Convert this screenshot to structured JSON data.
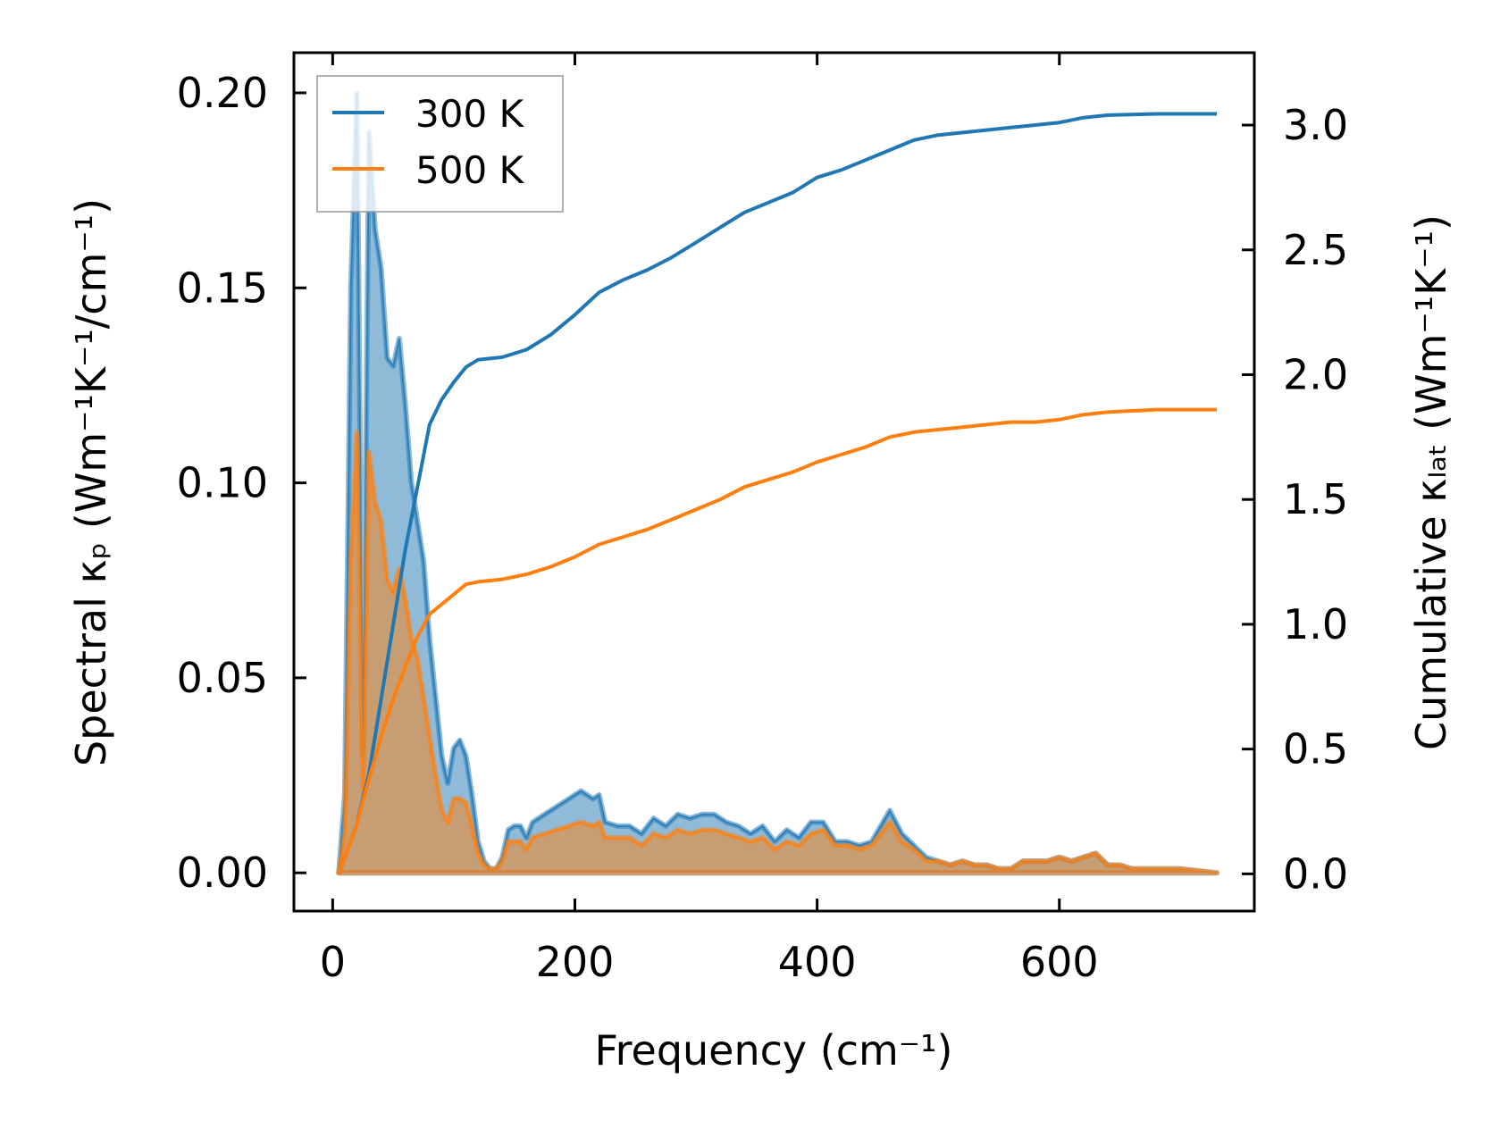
{
  "chart_data": {
    "type": "line",
    "xlabel": "Frequency (cm⁻¹)",
    "ylabel": "Spectral κₚ (Wm⁻¹K⁻¹/cm⁻¹)",
    "y2label": "Cumulative κₗₐₜ (Wm⁻¹K⁻¹)",
    "xlim": [
      -32,
      761
    ],
    "ylim": [
      -0.0098,
      0.2103
    ],
    "y2lim": [
      -0.149,
      3.29
    ],
    "xticks": [
      "0",
      "200",
      "400",
      "600"
    ],
    "xtick_values": [
      0,
      200,
      400,
      600
    ],
    "yticks": [
      "0.00",
      "0.05",
      "0.10",
      "0.15",
      "0.20"
    ],
    "ytick_values": [
      0,
      0.05,
      0.1,
      0.15,
      0.2
    ],
    "y2ticks": [
      "0.0",
      "0.5",
      "1.0",
      "1.5",
      "2.0",
      "2.5",
      "3.0"
    ],
    "y2tick_values": [
      0,
      0.5,
      1.0,
      1.5,
      2.0,
      2.5,
      3.0
    ],
    "legend": {
      "placement": "top-left",
      "entries": [
        "300 K",
        "500 K"
      ]
    },
    "colors": {
      "300 K": "#1f77b4",
      "500 K": "#ff7f0e"
    },
    "spectral": {
      "x": [
        5,
        10,
        15,
        20,
        25,
        30,
        35,
        40,
        45,
        50,
        55,
        60,
        65,
        70,
        75,
        80,
        85,
        90,
        95,
        100,
        105,
        110,
        115,
        120,
        125,
        130,
        135,
        140,
        145,
        150,
        155,
        160,
        165,
        175,
        185,
        195,
        205,
        215,
        220,
        225,
        235,
        245,
        255,
        265,
        275,
        285,
        295,
        305,
        315,
        325,
        335,
        345,
        355,
        365,
        375,
        385,
        395,
        405,
        415,
        425,
        435,
        445,
        460,
        470,
        480,
        490,
        500,
        510,
        520,
        530,
        540,
        550,
        560,
        570,
        580,
        590,
        600,
        610,
        620,
        630,
        640,
        650,
        660,
        680,
        700,
        730
      ],
      "series": [
        {
          "name": "300 K",
          "values": [
            0,
            0.02,
            0.15,
            0.2,
            0.03,
            0.19,
            0.165,
            0.155,
            0.132,
            0.13,
            0.137,
            0.12,
            0.1,
            0.09,
            0.08,
            0.06,
            0.045,
            0.03,
            0.023,
            0.032,
            0.034,
            0.03,
            0.02,
            0.008,
            0.003,
            0.001,
            0.001,
            0.004,
            0.011,
            0.012,
            0.012,
            0.009,
            0.013,
            0.015,
            0.017,
            0.019,
            0.021,
            0.019,
            0.02,
            0.013,
            0.012,
            0.012,
            0.01,
            0.014,
            0.012,
            0.015,
            0.014,
            0.015,
            0.015,
            0.013,
            0.012,
            0.01,
            0.012,
            0.008,
            0.011,
            0.009,
            0.013,
            0.013,
            0.008,
            0.008,
            0.007,
            0.008,
            0.016,
            0.01,
            0.007,
            0.004,
            0.003,
            0.002,
            0.003,
            0.002,
            0.002,
            0.001,
            0.001,
            0.003,
            0.003,
            0.003,
            0.004,
            0.003,
            0.004,
            0.005,
            0.002,
            0.002,
            0.001,
            0.001,
            0.001,
            0
          ]
        },
        {
          "name": "500 K",
          "values": [
            0,
            0.01,
            0.08,
            0.113,
            0.02,
            0.108,
            0.095,
            0.09,
            0.075,
            0.072,
            0.078,
            0.07,
            0.06,
            0.055,
            0.045,
            0.035,
            0.025,
            0.016,
            0.013,
            0.019,
            0.019,
            0.018,
            0.012,
            0.005,
            0.002,
            0.001,
            0.001,
            0.003,
            0.008,
            0.008,
            0.008,
            0.006,
            0.009,
            0.01,
            0.011,
            0.012,
            0.013,
            0.012,
            0.013,
            0.009,
            0.009,
            0.009,
            0.007,
            0.01,
            0.009,
            0.011,
            0.01,
            0.011,
            0.011,
            0.01,
            0.009,
            0.008,
            0.009,
            0.006,
            0.008,
            0.007,
            0.01,
            0.011,
            0.007,
            0.007,
            0.006,
            0.007,
            0.013,
            0.008,
            0.006,
            0.003,
            0.003,
            0.002,
            0.003,
            0.002,
            0.002,
            0.001,
            0.001,
            0.003,
            0.003,
            0.003,
            0.004,
            0.003,
            0.004,
            0.005,
            0.002,
            0.002,
            0.001,
            0.001,
            0.001,
            0
          ]
        }
      ]
    },
    "cumulative": {
      "x": [
        5,
        20,
        30,
        40,
        50,
        60,
        70,
        80,
        90,
        100,
        110,
        120,
        140,
        160,
        180,
        200,
        220,
        240,
        260,
        280,
        300,
        320,
        340,
        360,
        380,
        400,
        420,
        440,
        460,
        480,
        500,
        520,
        540,
        560,
        580,
        600,
        620,
        640,
        680,
        730
      ],
      "series": [
        {
          "name": "300 K",
          "values": [
            0,
            0.2,
            0.4,
            0.7,
            1.0,
            1.3,
            1.55,
            1.8,
            1.9,
            1.97,
            2.03,
            2.06,
            2.07,
            2.1,
            2.16,
            2.24,
            2.33,
            2.38,
            2.42,
            2.47,
            2.53,
            2.59,
            2.65,
            2.69,
            2.73,
            2.79,
            2.82,
            2.86,
            2.9,
            2.94,
            2.96,
            2.97,
            2.98,
            2.99,
            3.0,
            3.01,
            3.03,
            3.04,
            3.045,
            3.045
          ]
        },
        {
          "name": "500 K",
          "values": [
            0,
            0.2,
            0.38,
            0.55,
            0.7,
            0.83,
            0.95,
            1.04,
            1.08,
            1.12,
            1.16,
            1.17,
            1.18,
            1.2,
            1.23,
            1.27,
            1.32,
            1.35,
            1.38,
            1.42,
            1.46,
            1.5,
            1.55,
            1.58,
            1.61,
            1.65,
            1.68,
            1.71,
            1.75,
            1.77,
            1.78,
            1.79,
            1.8,
            1.81,
            1.81,
            1.82,
            1.84,
            1.85,
            1.86,
            1.86
          ]
        }
      ]
    }
  }
}
